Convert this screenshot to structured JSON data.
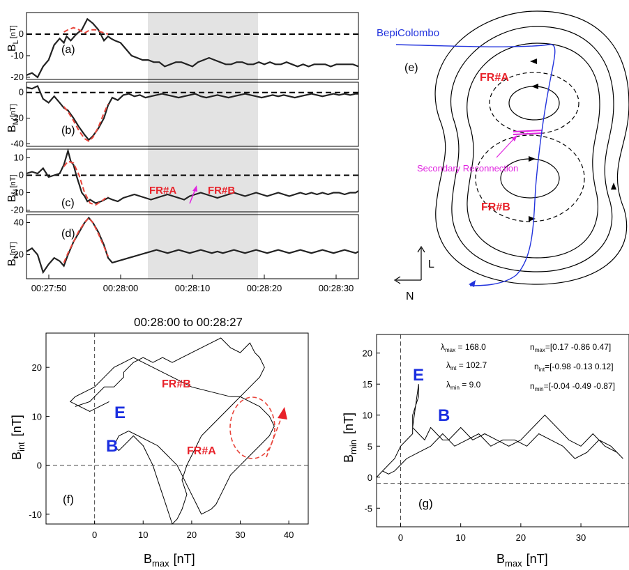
{
  "colors": {
    "highlight": "#e3e3e3",
    "model": "#e8443a",
    "data": "#222222",
    "mva_data": "#555555",
    "spacecraft": "#2233dd",
    "label_red": "#e8222a",
    "label_blue": "#1a2ee0",
    "reconnection": "#e024e0"
  },
  "chart_data": [
    {
      "panel": "(a)",
      "type": "line",
      "ylabel_main": "B",
      "ylabel_sub": "L",
      "ylabel_unit": "[nT]",
      "yticks": [
        "0",
        "-10",
        "-20"
      ],
      "ylim": [
        -21,
        10
      ],
      "zero_line": true,
      "shade_range": [
        "00:28:03.5",
        "00:28:19.2"
      ],
      "series": [
        {
          "style": "data",
          "x": [
            0,
            2,
            4,
            6,
            8,
            10,
            12,
            13.5,
            14.5,
            16,
            18,
            20,
            22,
            24,
            26,
            28,
            29.5,
            30.5,
            32,
            34,
            36,
            38,
            40,
            42,
            44,
            46,
            48,
            50,
            52,
            54,
            56,
            58,
            60,
            62,
            64,
            66,
            68,
            70,
            72,
            74,
            76,
            78,
            80,
            82,
            84,
            86,
            88,
            90,
            92,
            94,
            96,
            98,
            100,
            102,
            104,
            106,
            108,
            110,
            112,
            114,
            116,
            118,
            120
          ],
          "y": [
            -19,
            -18,
            -20,
            -15,
            -12,
            -5,
            -2,
            -4,
            -1,
            -3,
            0,
            2,
            7,
            5,
            2,
            -3,
            -1,
            -2,
            -3,
            -4,
            -7,
            -10,
            -11,
            -12,
            -12,
            -13,
            -13,
            -15,
            -14,
            -13,
            -13,
            -14,
            -15,
            -13,
            -12,
            -11,
            -12,
            -13,
            -14,
            -14,
            -13,
            -13,
            -14,
            -14,
            -13,
            -14,
            -13,
            -14,
            -14,
            -13,
            -14,
            -15,
            -14,
            -15,
            -14,
            -14,
            -14,
            -15,
            -14,
            -14,
            -14,
            -14,
            -15
          ]
        },
        {
          "style": "model",
          "x": [
            13.5,
            15,
            17,
            19,
            21,
            23,
            25,
            27,
            29.5
          ],
          "y": [
            1,
            2,
            3,
            2,
            0.5,
            2,
            2,
            1,
            0
          ]
        }
      ]
    },
    {
      "panel": "(b)",
      "type": "line",
      "ylabel_main": "B",
      "ylabel_sub": "M",
      "ylabel_unit": "[nT]",
      "yticks": [
        "0",
        "-20",
        "-40"
      ],
      "ylim": [
        -42,
        8
      ],
      "zero_line": true,
      "series": [
        {
          "style": "data",
          "x": [
            0,
            2,
            4,
            6,
            8,
            10,
            12,
            13.5,
            15,
            17,
            19,
            21,
            22.5,
            24,
            26,
            28,
            29.5,
            31,
            33,
            35,
            37,
            39,
            41,
            43,
            45,
            47,
            49,
            51,
            53,
            55,
            57,
            59,
            61,
            63,
            65,
            67,
            69,
            71,
            73,
            75,
            77,
            79,
            81,
            83,
            85,
            87,
            89,
            91,
            93,
            95,
            97,
            99,
            101,
            103,
            105,
            107,
            109,
            111,
            113,
            115,
            117,
            119,
            120
          ],
          "y": [
            4,
            3,
            5,
            -5,
            -8,
            -3,
            -8,
            -12,
            -14,
            -20,
            -27,
            -33,
            -37,
            -34,
            -28,
            -20,
            -10,
            -4,
            -6,
            -2,
            -1,
            -3,
            -2,
            -4,
            -3,
            -2,
            -1,
            -2,
            -3,
            -4,
            -3,
            -2,
            -1,
            -3,
            -4,
            -3,
            -2,
            -3,
            -4,
            -3,
            -2,
            -1,
            -2,
            -3,
            -4,
            -3,
            -2,
            -3,
            -2,
            -3,
            -4,
            -3,
            -2,
            -1,
            -2,
            -3,
            -2,
            -1,
            -2,
            -1,
            -2,
            -1,
            -1
          ]
        },
        {
          "style": "model",
          "x": [
            13.5,
            15,
            17,
            19,
            21,
            22.5,
            24,
            26,
            28,
            29.5
          ],
          "y": [
            -11,
            -15,
            -22,
            -30,
            -36,
            -38,
            -35,
            -27,
            -16,
            -9
          ]
        }
      ]
    },
    {
      "panel": "(c)",
      "type": "line",
      "ylabel_main": "B",
      "ylabel_sub": "N",
      "ylabel_unit": "[nT]",
      "yticks": [
        "10",
        "0",
        "-10",
        "-20"
      ],
      "ylim": [
        -21,
        15
      ],
      "zero_line": true,
      "series": [
        {
          "style": "data",
          "x": [
            0,
            2,
            4,
            6,
            8,
            10,
            12,
            13.5,
            15,
            16,
            17,
            18,
            19,
            20,
            21,
            22,
            23,
            25,
            27,
            29.5,
            31,
            33,
            35,
            37,
            39,
            41,
            43,
            45,
            47,
            49,
            51,
            53,
            55,
            57,
            59,
            61,
            63,
            65,
            67,
            69,
            71,
            73,
            75,
            77,
            79,
            81,
            83,
            85,
            87,
            89,
            91,
            93,
            95,
            97,
            99,
            101,
            103,
            105,
            107,
            109,
            111,
            113,
            115,
            117,
            119,
            120
          ],
          "y": [
            1,
            2,
            1,
            4,
            -1,
            0,
            1,
            6,
            14,
            8,
            6,
            0,
            -5,
            -10,
            -12,
            -15,
            -14,
            -16,
            -15,
            -13,
            -14,
            -15,
            -13,
            -12,
            -11,
            -12,
            -13,
            -14,
            -13,
            -12,
            -11,
            -12,
            -13,
            -14,
            -12,
            -11,
            -10,
            -11,
            -12,
            -13,
            -12,
            -11,
            -10,
            -11,
            -12,
            -11,
            -10,
            -11,
            -12,
            -11,
            -10,
            -11,
            -12,
            -11,
            -10,
            -11,
            -10,
            -11,
            -10,
            -11,
            -10,
            -10,
            -11,
            -10,
            -10,
            -9
          ]
        },
        {
          "style": "model",
          "x": [
            13.5,
            15,
            17,
            19,
            21,
            23,
            25,
            27,
            29.5
          ],
          "y": [
            5,
            8,
            7,
            0,
            -10,
            -16,
            -17,
            -15,
            -12
          ]
        }
      ]
    },
    {
      "panel": "(d)",
      "type": "line",
      "ylabel_main": "B",
      "ylabel_sub": "t",
      "ylabel_unit": "[nT]",
      "yticks": [
        "40",
        "20"
      ],
      "ylim": [
        5,
        45
      ],
      "series": [
        {
          "style": "data",
          "x": [
            0,
            2,
            4,
            6,
            8,
            10,
            12,
            13.5,
            15,
            17,
            19,
            21,
            22.5,
            24,
            26,
            28,
            29.5,
            31,
            33,
            35,
            37,
            39,
            41,
            43,
            45,
            47,
            49,
            51,
            53,
            55,
            57,
            59,
            61,
            63,
            65,
            67,
            69,
            71,
            73,
            75,
            77,
            79,
            81,
            83,
            85,
            87,
            89,
            91,
            93,
            95,
            97,
            99,
            101,
            103,
            105,
            107,
            109,
            111,
            113,
            115,
            117,
            119,
            120
          ],
          "y": [
            22,
            24,
            20,
            9,
            14,
            18,
            16,
            13,
            20,
            28,
            34,
            40,
            43,
            40,
            34,
            26,
            18,
            15,
            16,
            17,
            18,
            19,
            20,
            21,
            22,
            23,
            22,
            21,
            22,
            23,
            22,
            21,
            22,
            23,
            22,
            21,
            22,
            21,
            22,
            23,
            22,
            21,
            22,
            23,
            22,
            21,
            22,
            23,
            22,
            21,
            22,
            23,
            22,
            21,
            22,
            23,
            22,
            21,
            22,
            23,
            22,
            21,
            22
          ]
        },
        {
          "style": "model",
          "x": [
            13.5,
            15,
            17,
            19,
            21,
            22.5,
            24,
            26,
            28,
            29.5
          ],
          "y": [
            15,
            21,
            28,
            35,
            40,
            43,
            40,
            33,
            25,
            19
          ]
        }
      ]
    }
  ],
  "time_axis": {
    "ticks": [
      "00:27:50",
      "00:28:00",
      "00:28:10",
      "00:28:20",
      "00:28:30"
    ]
  },
  "panel_labels": {
    "c_fra": "FR#A",
    "c_frb": "FR#B"
  },
  "schematic": {
    "panel": "(e)",
    "spacecraft": "BepiColombo",
    "fr_a": "FR#A",
    "fr_b": "FR#B",
    "reconnection": "Secondary Reconnection",
    "axis_l": "L",
    "axis_n": "N"
  },
  "hodogram_f": {
    "panel": "(f)",
    "title": "00:28:00 to 00:28:27",
    "xlabel_main": "B",
    "xlabel_sub": "max",
    "xlabel_unit": "[nT]",
    "ylabel_main": "B",
    "ylabel_sub": "int",
    "ylabel_unit": "[nT]",
    "xticks": [
      "0",
      "10",
      "20",
      "30",
      "40"
    ],
    "yticks": [
      "20",
      "10",
      "0",
      "-10"
    ],
    "xlim": [
      -10,
      44
    ],
    "ylim": [
      -12,
      27
    ],
    "labels": {
      "fra": "FR#A",
      "frb": "FR#B",
      "e": "E",
      "b": "B"
    },
    "trace_x": [
      -4,
      -1,
      0,
      2,
      4,
      5,
      6,
      6,
      8,
      10,
      12,
      14,
      16,
      18,
      20,
      22,
      24,
      26,
      28,
      30,
      32,
      33,
      34,
      35,
      34,
      32,
      30,
      28,
      26,
      24,
      22,
      21,
      20,
      19,
      18,
      19,
      18,
      17,
      16,
      15,
      14,
      13,
      12,
      11,
      10,
      9,
      8,
      7,
      6,
      5,
      4,
      5,
      7,
      9,
      11,
      13,
      14,
      15,
      16,
      17,
      18,
      19,
      20,
      21,
      22,
      24,
      25,
      26,
      27,
      28,
      30,
      32,
      34,
      36,
      37,
      36,
      34,
      32,
      30,
      28,
      24,
      20,
      16,
      12,
      10,
      8,
      6,
      4,
      2,
      0,
      -2,
      -4,
      -5,
      -3,
      -1,
      1,
      3,
      4,
      5
    ],
    "trace_y": [
      12,
      13,
      14,
      16,
      16,
      17,
      18,
      19,
      21,
      22,
      21,
      22,
      21,
      22,
      23,
      24,
      25,
      26,
      24,
      23,
      25,
      23,
      22,
      20,
      18,
      16,
      14,
      12,
      10,
      8,
      6,
      4,
      2,
      0,
      -3,
      -6,
      -9,
      -11,
      -12,
      -9,
      -6,
      -3,
      0,
      2,
      4,
      5,
      6,
      5,
      4,
      3,
      4,
      6,
      7,
      6,
      5,
      4,
      3,
      2,
      1,
      0,
      -2,
      -4,
      -6,
      -8,
      -10,
      -9,
      -8,
      -6,
      -4,
      -2,
      0,
      2,
      4,
      6,
      8,
      10,
      12,
      13,
      14,
      14,
      15,
      16,
      18,
      20,
      21,
      22,
      21,
      20,
      18,
      16,
      15,
      14,
      13,
      12,
      11,
      12,
      13
    ]
  },
  "hodogram_g": {
    "panel": "(g)",
    "xlabel_main": "B",
    "xlabel_sub": "max",
    "xlabel_unit": "[nT]",
    "ylabel_main": "B",
    "ylabel_sub": "min",
    "ylabel_unit": "[nT]",
    "xticks": [
      "0",
      "10",
      "20",
      "30"
    ],
    "yticks": [
      "20",
      "15",
      "10",
      "5",
      "0",
      "-5"
    ],
    "xlim": [
      -4,
      38
    ],
    "ylim": [
      -8,
      23
    ],
    "labels": {
      "e": "E",
      "b": "B"
    },
    "lambda_max": "168.0",
    "lambda_int": "102.7",
    "lambda_min": "9.0",
    "n_max": "[0.17 -0.86 0.47]",
    "n_int": "[-0.98 -0.13 0.12]",
    "n_min": "[-0.04 -0.49 -0.87]",
    "trace_x": [
      -4,
      -3,
      -2,
      -1,
      0,
      1,
      2,
      2,
      3,
      3,
      2,
      3,
      4,
      5,
      6,
      7,
      8,
      9,
      10,
      12,
      14,
      16,
      18,
      20,
      22,
      24,
      26,
      28,
      30,
      32,
      34,
      36,
      37,
      35,
      33,
      31,
      29,
      27,
      25,
      23,
      21,
      19,
      17,
      15,
      13,
      11,
      9,
      7,
      5,
      3,
      1,
      0,
      -1,
      -2,
      -3,
      -4
    ],
    "trace_y": [
      0,
      1,
      2,
      3,
      5,
      6,
      7,
      10,
      13,
      15,
      8,
      7,
      6,
      8,
      7,
      6,
      6,
      7,
      8,
      6,
      7,
      6,
      5,
      6,
      8,
      10,
      8,
      6,
      5,
      7,
      5,
      4,
      3,
      5,
      6,
      4,
      3,
      5,
      6,
      7,
      5,
      6,
      6,
      5,
      7,
      6,
      5,
      7,
      5,
      4,
      3,
      2,
      1,
      0.5,
      1,
      0
    ]
  }
}
